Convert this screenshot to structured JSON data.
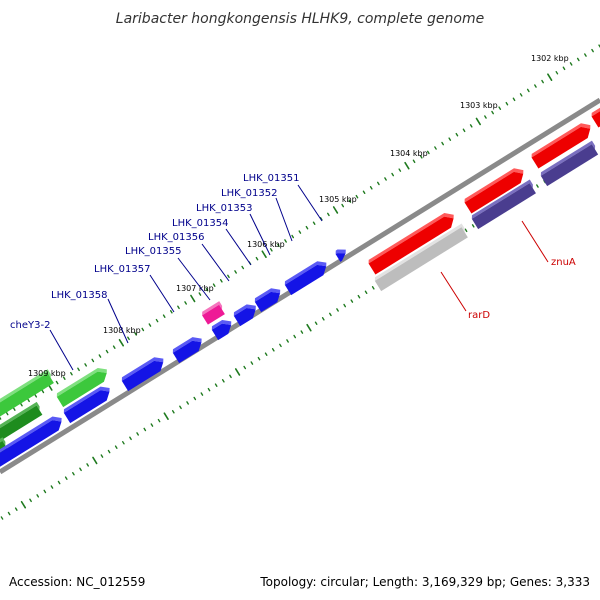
{
  "title": "Laribacter hongkongensis HLHK9, complete genome",
  "footer": {
    "accession": "Accession: NC_012559",
    "topology": "Topology: circular; Length: 3,169,329 bp; Genes: 3,333"
  },
  "colors": {
    "background": "#ffffff",
    "backbone": "#8a8a8a",
    "tick": "#1f7a1f",
    "gene_label_blue": "#00008b",
    "gene_label_red": "#cc0000",
    "cds_blue": "#1414e6",
    "cds_red": "#ee0000",
    "cds_green": "#3cc83c",
    "dark_green": "#1e8c1e",
    "cds_purple": "#4a3d8f",
    "cds_gray": "#bdbdbd",
    "cds_magenta": "#ee1a96"
  },
  "kbp_marks": [
    "1302 kbp",
    "1303 kbp",
    "1304 kbp",
    "1305 kbp",
    "1306 kbp",
    "1307 kbp",
    "1308 kbp",
    "1309 kbp"
  ],
  "gene_labels": [
    {
      "name": "LHK_01351",
      "color": "blue"
    },
    {
      "name": "LHK_01352",
      "color": "blue"
    },
    {
      "name": "LHK_01353",
      "color": "blue"
    },
    {
      "name": "LHK_01354",
      "color": "blue"
    },
    {
      "name": "LHK_01356",
      "color": "blue"
    },
    {
      "name": "LHK_01355",
      "color": "blue"
    },
    {
      "name": "LHK_01357",
      "color": "blue"
    },
    {
      "name": "LHK_01358",
      "color": "blue"
    },
    {
      "name": "cheY3-2",
      "color": "blue"
    },
    {
      "name": "znuA",
      "color": "red"
    },
    {
      "name": "rarD",
      "color": "red"
    }
  ]
}
